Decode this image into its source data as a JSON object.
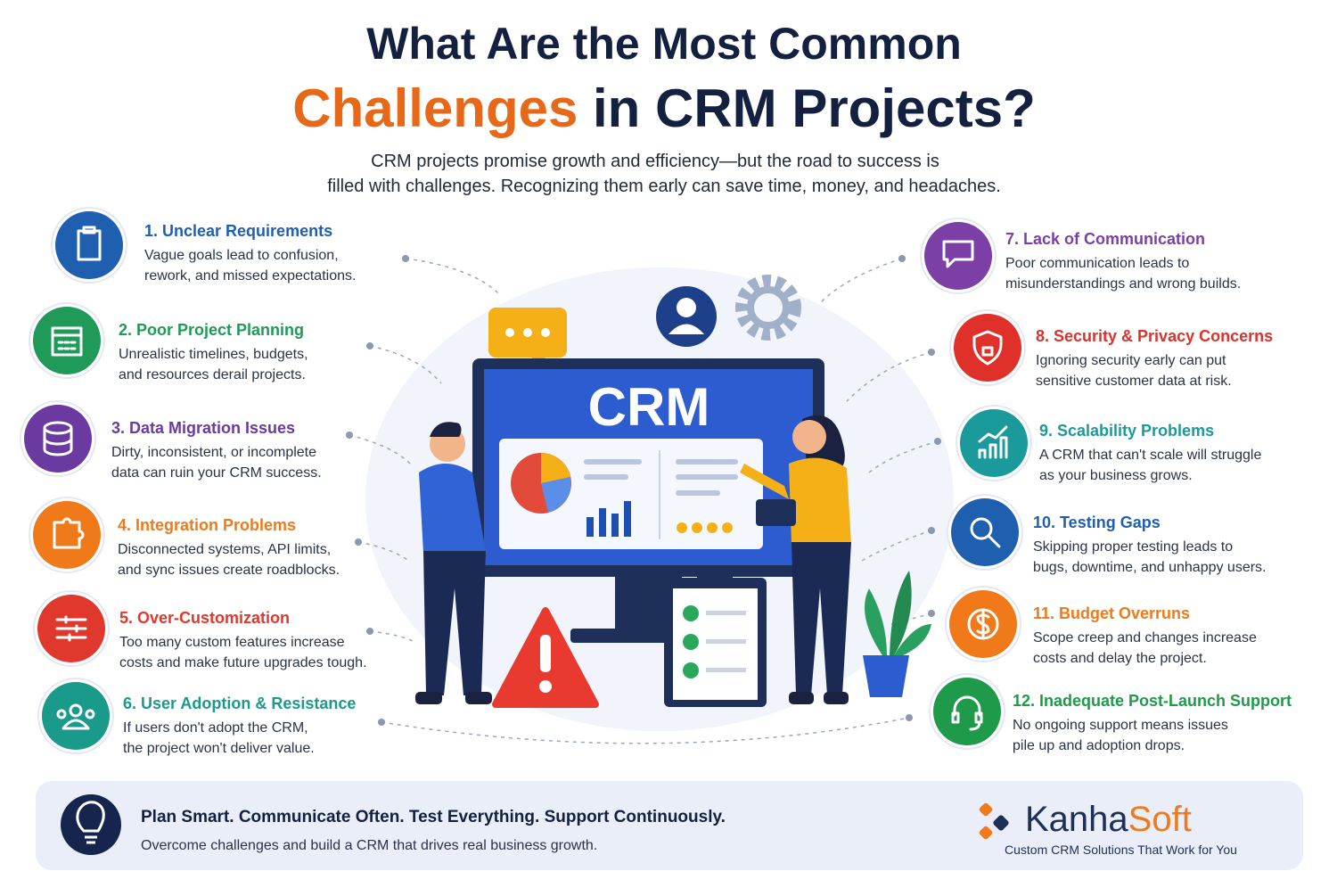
{
  "header": {
    "title_line1": "What Are the Most Common",
    "title_highlight": "Challenges",
    "title_rest": " in CRM Projects?",
    "subtitle": [
      "CRM projects promise growth and efficiency—but the road to success is",
      "filled with challenges. Recognizing them early can save time, money, and headaches."
    ]
  },
  "illustration": {
    "screen_label": "CRM"
  },
  "challenges": [
    {
      "title": "1. Unclear Requirements",
      "desc": [
        "Vague goals lead to confusion,",
        "rework, and missed expectations."
      ],
      "color": "#1f5fb0"
    },
    {
      "title": "2. Poor Project Planning",
      "desc": [
        "Unrealistic timelines, budgets,",
        "and resources derail projects."
      ],
      "color": "#1f9a58"
    },
    {
      "title": "3. Data Migration Issues",
      "desc": [
        "Dirty, inconsistent, or incomplete",
        "data can ruin your CRM success."
      ],
      "color": "#6a3aa0"
    },
    {
      "title": "4. Integration Problems",
      "desc": [
        "Disconnected systems, API limits,",
        "and sync issues create roadblocks."
      ],
      "color": "#f07a1a"
    },
    {
      "title": "5. Over-Customization",
      "desc": [
        "Too many custom features increase",
        "costs and make future upgrades tough."
      ],
      "color": "#e0382c"
    },
    {
      "title": "6. User Adoption & Resistance",
      "desc": [
        "If users don't adopt the CRM,",
        "the project won't deliver value."
      ],
      "color": "#1a9a8a"
    },
    {
      "title": "7. Lack of Communication",
      "desc": [
        "Poor communication leads to",
        "misunderstandings and wrong builds."
      ],
      "color": "#7b3fa6"
    },
    {
      "title": "8. Security & Privacy Concerns",
      "desc": [
        "Ignoring security early can put",
        "sensitive customer data at risk."
      ],
      "color": "#e0302a"
    },
    {
      "title": "9. Scalability Problems",
      "desc": [
        "A CRM that can't scale will struggle",
        "as your business grows."
      ],
      "color": "#1a9a9a"
    },
    {
      "title": "10. Testing Gaps",
      "desc": [
        "Skipping proper testing leads to",
        "bugs, downtime, and unhappy users."
      ],
      "color": "#1f5fb0"
    },
    {
      "title": "11. Budget Overruns",
      "desc": [
        "Scope creep and changes increase",
        "costs and delay the project."
      ],
      "color": "#f07a1a"
    },
    {
      "title": "12. Inadequate Post-Launch Support",
      "desc": [
        "No ongoing support means issues",
        "pile up and adoption drops."
      ],
      "color": "#1f9a4a"
    }
  ],
  "footer": {
    "headline": "Plan Smart. Communicate Often. Test Everything. Support Continuously.",
    "text": "Overcome challenges and build a CRM that drives real business growth.",
    "brand_a": "Kanha",
    "brand_b": "Soft",
    "tagline": "Custom CRM Solutions That Work for You"
  }
}
